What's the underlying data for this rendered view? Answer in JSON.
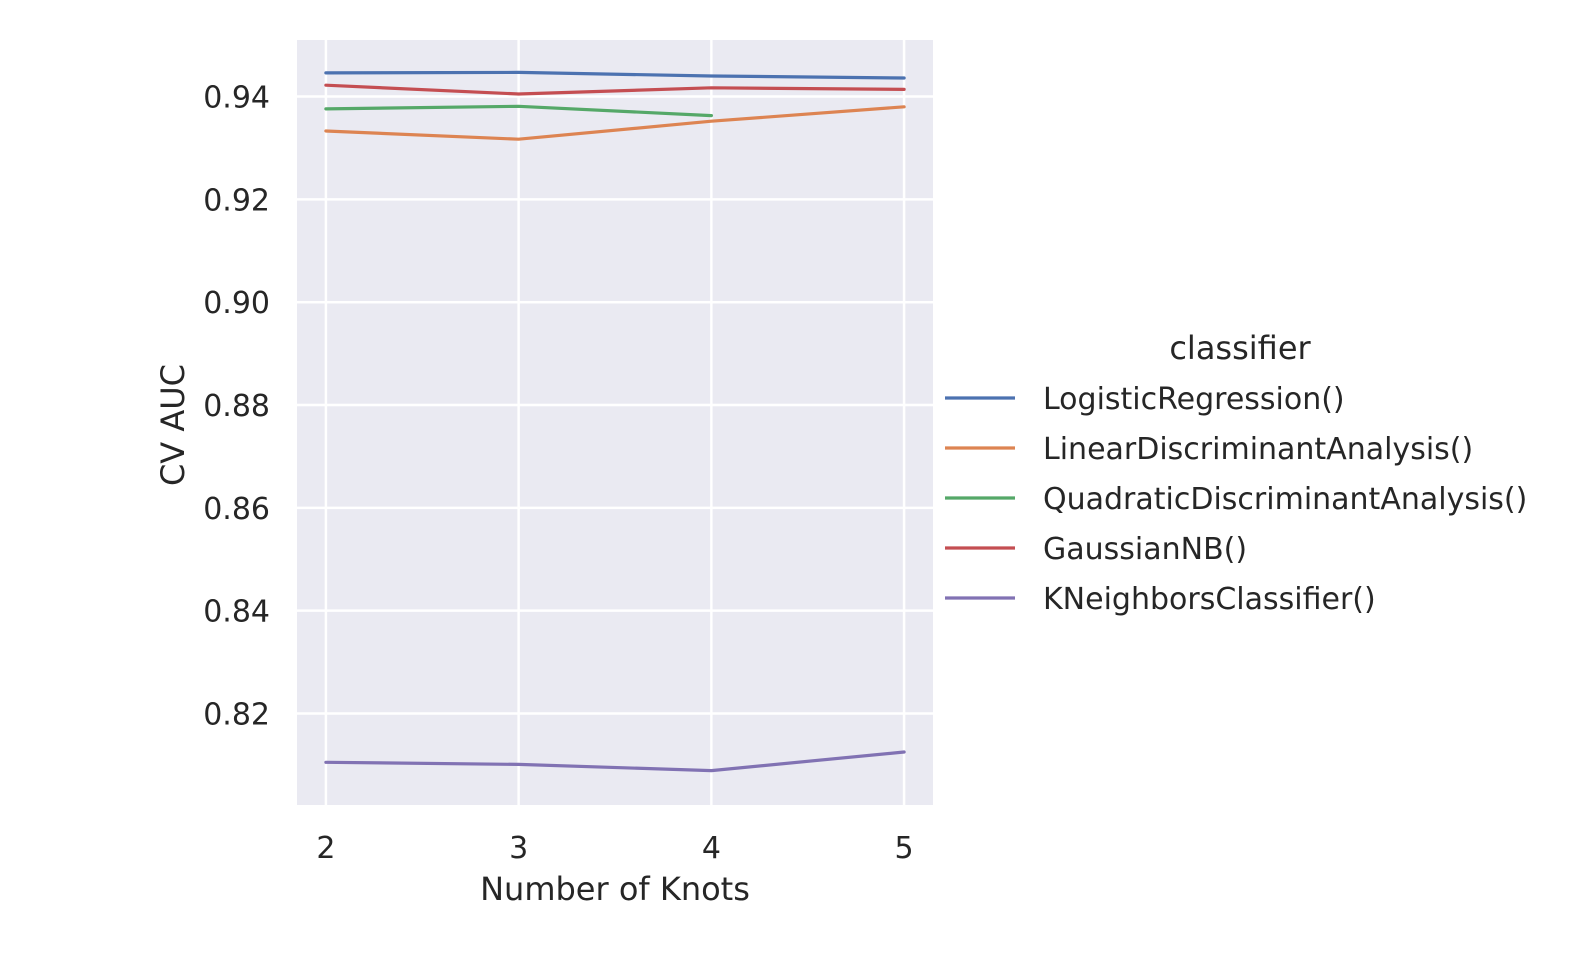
{
  "chart_data": {
    "type": "line",
    "title": "",
    "xlabel": "Number of Knots",
    "ylabel": "CV AUC",
    "x": [
      2,
      3,
      4,
      5
    ],
    "x_ticks": [
      "2",
      "3",
      "4",
      "5"
    ],
    "y_ticks": [
      "0.82",
      "0.84",
      "0.86",
      "0.88",
      "0.90",
      "0.92",
      "0.94"
    ],
    "ylim": [
      0.8022,
      0.951
    ],
    "xlim": [
      1.85,
      5.15
    ],
    "grid": true,
    "legend_title": "classifier",
    "legend_position": "right",
    "series": [
      {
        "name": "LogisticRegression()",
        "color": "#4c72b0",
        "values": [
          0.9446,
          0.9447,
          0.944,
          0.9436
        ]
      },
      {
        "name": "LinearDiscriminantAnalysis()",
        "color": "#dd8452",
        "values": [
          0.9333,
          0.9317,
          0.9352,
          0.938
        ]
      },
      {
        "name": "QuadraticDiscriminantAnalysis()",
        "color": "#55a868",
        "values": [
          0.9376,
          0.9381,
          0.9363,
          null
        ]
      },
      {
        "name": "GaussianNB()",
        "color": "#c44e52",
        "values": [
          0.9422,
          0.9405,
          0.9417,
          0.9414
        ]
      },
      {
        "name": "KNeighborsClassifier()",
        "color": "#8172b3",
        "values": [
          0.8105,
          0.8101,
          0.8089,
          0.8125
        ]
      }
    ]
  }
}
